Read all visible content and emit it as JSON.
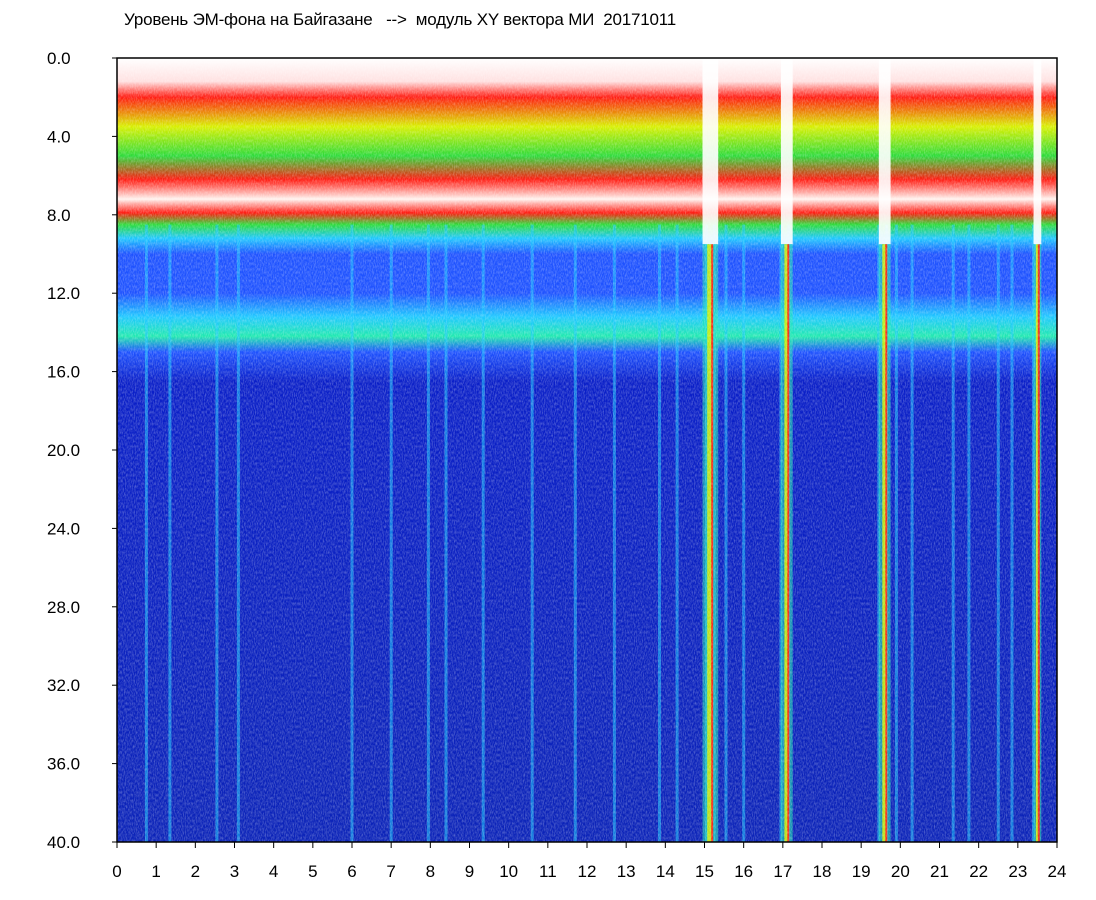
{
  "title": "Уровень ЭМ-фона на Байгазане   -->  модуль XY вектора МИ  20171011",
  "chart_data": {
    "type": "heatmap",
    "title": "Уровень ЭМ-фона на Байгазане   -->  модуль XY вектора МИ  20171011",
    "xlabel": "",
    "ylabel": "",
    "x_ticks": [
      "0",
      "1",
      "2",
      "3",
      "4",
      "5",
      "6",
      "7",
      "8",
      "9",
      "10",
      "11",
      "12",
      "13",
      "14",
      "15",
      "16",
      "17",
      "18",
      "19",
      "20",
      "21",
      "22",
      "23",
      "24"
    ],
    "y_ticks": [
      "0.0",
      "4.0",
      "8.0",
      "12.0",
      "16.0",
      "20.0",
      "24.0",
      "28.0",
      "32.0",
      "36.0",
      "40.0"
    ],
    "xlim": [
      0,
      24
    ],
    "ylim": [
      0,
      40
    ],
    "y_inverted": true,
    "grid": false,
    "colormap": [
      "#0a1fc8",
      "#1e52ff",
      "#1fc8ff",
      "#21e9b0",
      "#2cdb3a",
      "#d8f000",
      "#ff1a10",
      "#ffffff"
    ],
    "bands": [
      {
        "y_from": 0.0,
        "y_to": 1.5,
        "level": "white / sparse red"
      },
      {
        "y_from": 1.5,
        "y_to": 6.5,
        "level": "red-yellow-green"
      },
      {
        "y_from": 6.5,
        "y_to": 8.0,
        "level": "white-red"
      },
      {
        "y_from": 8.0,
        "y_to": 9.5,
        "level": "green-cyan"
      },
      {
        "y_from": 9.5,
        "y_to": 12.5,
        "level": "blue with cyan"
      },
      {
        "y_from": 12.5,
        "y_to": 15.0,
        "level": "cyan-green"
      },
      {
        "y_from": 15.0,
        "y_to": 40.0,
        "level": "deep blue"
      }
    ],
    "streaks": [
      0.75,
      1.35,
      2.55,
      3.1,
      6.0,
      7.0,
      7.95,
      8.4,
      9.35,
      10.6,
      11.7,
      12.7,
      13.85,
      14.3,
      15.05,
      15.25,
      15.55,
      16.0,
      16.95,
      17.15,
      19.45,
      19.65,
      19.9,
      20.3,
      21.35,
      21.75,
      22.5,
      22.85,
      23.4,
      23.5
    ],
    "gaps": [
      {
        "x_from": 14.95,
        "x_to": 15.35
      },
      {
        "x_from": 16.95,
        "x_to": 17.25
      },
      {
        "x_from": 19.45,
        "x_to": 19.75
      },
      {
        "x_from": 23.4,
        "x_to": 23.6
      }
    ]
  }
}
